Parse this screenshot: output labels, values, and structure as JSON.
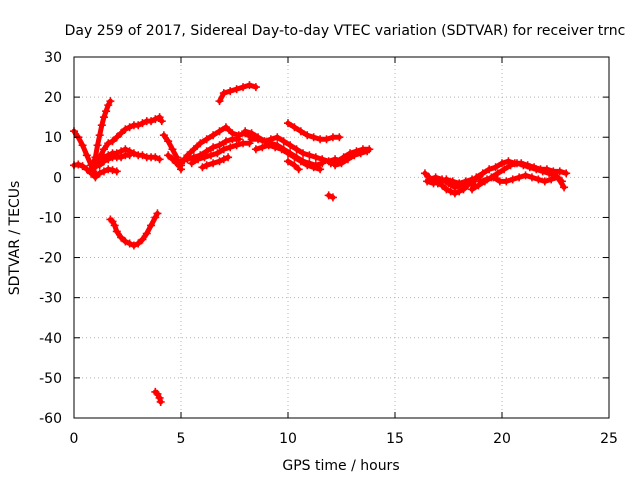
{
  "chart_data": {
    "type": "scatter",
    "title": "Day 259 of 2017, Sidereal Day-to-day VTEC variation (SDTVAR) for receiver trnc",
    "xlabel": "GPS time / hours",
    "ylabel": "SDTVAR / TECUs",
    "xlim": [
      0,
      25
    ],
    "ylim": [
      -60,
      30
    ],
    "xticks": [
      "0",
      "5",
      "10",
      "15",
      "20",
      "25"
    ],
    "yticks": [
      "30",
      "20",
      "10",
      "0",
      "-10",
      "-20",
      "-30",
      "-40",
      "-50",
      "-60"
    ],
    "grid": true,
    "marker": "+",
    "series": [
      {
        "name": "SDTVAR",
        "color": "#ff0000",
        "points": [
          [
            0.0,
            3.0
          ],
          [
            0.2,
            3.2
          ],
          [
            0.4,
            2.8
          ],
          [
            0.6,
            2.0
          ],
          [
            0.8,
            1.0
          ],
          [
            1.0,
            0.5
          ],
          [
            1.2,
            1.0
          ],
          [
            1.4,
            1.5
          ],
          [
            1.6,
            2.0
          ],
          [
            1.8,
            1.8
          ],
          [
            2.0,
            1.5
          ],
          [
            0.0,
            11.5
          ],
          [
            0.2,
            10.0
          ],
          [
            0.4,
            8.0
          ],
          [
            0.6,
            5.5
          ],
          [
            0.8,
            3.0
          ],
          [
            0.9,
            1.5
          ],
          [
            1.0,
            0.0
          ],
          [
            0.8,
            2.0
          ],
          [
            1.0,
            5.0
          ],
          [
            1.1,
            8.0
          ],
          [
            1.2,
            10.5
          ],
          [
            1.3,
            13.0
          ],
          [
            1.4,
            15.0
          ],
          [
            1.5,
            16.5
          ],
          [
            1.6,
            18.0
          ],
          [
            1.7,
            19.0
          ],
          [
            1.0,
            3.0
          ],
          [
            1.2,
            5.0
          ],
          [
            1.4,
            7.0
          ],
          [
            1.6,
            8.5
          ],
          [
            1.8,
            9.0
          ],
          [
            2.0,
            10.0
          ],
          [
            2.2,
            11.0
          ],
          [
            2.4,
            12.0
          ],
          [
            2.6,
            12.5
          ],
          [
            2.8,
            13.0
          ],
          [
            3.0,
            13.0
          ],
          [
            3.2,
            13.5
          ],
          [
            3.4,
            14.0
          ],
          [
            3.6,
            14.0
          ],
          [
            3.8,
            14.5
          ],
          [
            4.0,
            15.0
          ],
          [
            4.1,
            14.0
          ],
          [
            1.0,
            2.5
          ],
          [
            1.2,
            4.0
          ],
          [
            1.4,
            5.0
          ],
          [
            1.6,
            5.5
          ],
          [
            1.8,
            6.0
          ],
          [
            2.0,
            6.0
          ],
          [
            2.2,
            6.5
          ],
          [
            2.4,
            7.0
          ],
          [
            2.6,
            6.5
          ],
          [
            2.8,
            6.0
          ],
          [
            3.0,
            5.5
          ],
          [
            3.2,
            5.5
          ],
          [
            3.4,
            5.0
          ],
          [
            3.6,
            5.0
          ],
          [
            3.8,
            5.0
          ],
          [
            4.0,
            4.5
          ],
          [
            1.2,
            3.0
          ],
          [
            1.4,
            4.0
          ],
          [
            1.6,
            4.5
          ],
          [
            1.8,
            5.0
          ],
          [
            2.0,
            5.0
          ],
          [
            2.2,
            5.0
          ],
          [
            2.4,
            5.5
          ],
          [
            2.6,
            5.5
          ],
          [
            1.7,
            -10.5
          ],
          [
            1.8,
            -11.0
          ],
          [
            1.9,
            -12.0
          ],
          [
            2.0,
            -13.5
          ],
          [
            2.2,
            -15.0
          ],
          [
            2.4,
            -16.0
          ],
          [
            2.6,
            -16.5
          ],
          [
            2.8,
            -17.0
          ],
          [
            3.0,
            -16.5
          ],
          [
            3.2,
            -15.5
          ],
          [
            3.4,
            -14.0
          ],
          [
            3.6,
            -12.0
          ],
          [
            3.8,
            -10.0
          ],
          [
            3.9,
            -9.0
          ],
          [
            3.8,
            -53.5
          ],
          [
            3.9,
            -54.0
          ],
          [
            4.0,
            -55.0
          ],
          [
            4.05,
            -56.0
          ],
          [
            4.2,
            10.5
          ],
          [
            4.4,
            9.0
          ],
          [
            4.6,
            7.0
          ],
          [
            4.8,
            5.0
          ],
          [
            4.9,
            3.0
          ],
          [
            5.0,
            2.0
          ],
          [
            4.4,
            5.5
          ],
          [
            4.6,
            4.5
          ],
          [
            4.8,
            3.5
          ],
          [
            5.0,
            3.0
          ],
          [
            5.0,
            4.0
          ],
          [
            5.3,
            4.5
          ],
          [
            5.6,
            5.0
          ],
          [
            5.9,
            5.5
          ],
          [
            6.2,
            6.5
          ],
          [
            6.5,
            7.5
          ],
          [
            6.8,
            8.0
          ],
          [
            7.1,
            9.0
          ],
          [
            7.4,
            9.5
          ],
          [
            7.7,
            9.5
          ],
          [
            5.0,
            3.5
          ],
          [
            5.3,
            5.5
          ],
          [
            5.6,
            7.0
          ],
          [
            5.9,
            8.5
          ],
          [
            6.2,
            9.5
          ],
          [
            6.5,
            10.5
          ],
          [
            6.8,
            11.5
          ],
          [
            7.1,
            12.5
          ],
          [
            7.4,
            11.0
          ],
          [
            7.7,
            10.5
          ],
          [
            8.0,
            11.0
          ],
          [
            8.3,
            10.0
          ],
          [
            5.5,
            3.5
          ],
          [
            5.8,
            4.5
          ],
          [
            6.1,
            5.0
          ],
          [
            6.4,
            5.5
          ],
          [
            6.7,
            6.0
          ],
          [
            7.0,
            7.0
          ],
          [
            7.3,
            7.5
          ],
          [
            7.6,
            8.0
          ],
          [
            7.9,
            8.5
          ],
          [
            8.2,
            8.5
          ],
          [
            6.0,
            2.5
          ],
          [
            6.2,
            3.0
          ],
          [
            6.5,
            3.5
          ],
          [
            6.8,
            4.0
          ],
          [
            7.0,
            4.5
          ],
          [
            7.2,
            5.0
          ],
          [
            6.8,
            19.0
          ],
          [
            7.0,
            21.0
          ],
          [
            7.3,
            21.5
          ],
          [
            7.6,
            22.0
          ],
          [
            7.9,
            22.5
          ],
          [
            8.2,
            23.0
          ],
          [
            8.5,
            22.5
          ],
          [
            8.0,
            11.5
          ],
          [
            8.3,
            11.0
          ],
          [
            8.6,
            10.0
          ],
          [
            8.9,
            9.0
          ],
          [
            9.2,
            8.5
          ],
          [
            9.5,
            8.0
          ],
          [
            9.8,
            7.0
          ],
          [
            10.1,
            6.0
          ],
          [
            10.4,
            5.0
          ],
          [
            10.7,
            4.0
          ],
          [
            11.0,
            3.5
          ],
          [
            11.3,
            3.0
          ],
          [
            11.6,
            3.5
          ],
          [
            8.3,
            9.5
          ],
          [
            8.6,
            9.5
          ],
          [
            8.9,
            9.0
          ],
          [
            9.2,
            9.5
          ],
          [
            9.5,
            10.0
          ],
          [
            9.8,
            9.0
          ],
          [
            10.1,
            8.0
          ],
          [
            10.4,
            7.0
          ],
          [
            10.7,
            6.0
          ],
          [
            11.0,
            5.5
          ],
          [
            11.3,
            5.0
          ],
          [
            11.6,
            4.5
          ],
          [
            11.9,
            4.0
          ],
          [
            12.2,
            4.5
          ],
          [
            12.5,
            4.0
          ],
          [
            8.5,
            7.0
          ],
          [
            8.8,
            7.5
          ],
          [
            9.1,
            8.0
          ],
          [
            9.4,
            7.5
          ],
          [
            9.7,
            7.0
          ],
          [
            10.0,
            6.0
          ],
          [
            10.3,
            5.0
          ],
          [
            10.6,
            4.0
          ],
          [
            10.9,
            3.0
          ],
          [
            11.2,
            2.5
          ],
          [
            11.5,
            2.0
          ],
          [
            10.0,
            13.5
          ],
          [
            10.3,
            12.5
          ],
          [
            10.6,
            11.5
          ],
          [
            10.9,
            10.5
          ],
          [
            11.2,
            10.0
          ],
          [
            11.5,
            9.5
          ],
          [
            11.8,
            9.5
          ],
          [
            12.1,
            10.0
          ],
          [
            12.4,
            10.0
          ],
          [
            10.0,
            4.0
          ],
          [
            10.3,
            3.0
          ],
          [
            10.5,
            2.0
          ],
          [
            11.9,
            -4.5
          ],
          [
            12.1,
            -5.0
          ],
          [
            12.0,
            3.5
          ],
          [
            12.3,
            4.0
          ],
          [
            12.6,
            5.0
          ],
          [
            12.9,
            6.0
          ],
          [
            13.2,
            6.5
          ],
          [
            13.5,
            7.0
          ],
          [
            13.8,
            7.0
          ],
          [
            12.2,
            3.0
          ],
          [
            12.5,
            3.5
          ],
          [
            12.8,
            4.5
          ],
          [
            13.1,
            5.5
          ],
          [
            13.4,
            6.0
          ],
          [
            13.7,
            6.5
          ],
          [
            16.4,
            1.0
          ],
          [
            16.6,
            0.0
          ],
          [
            16.8,
            -1.0
          ],
          [
            17.0,
            -1.5
          ],
          [
            17.2,
            -2.0
          ],
          [
            17.4,
            -3.0
          ],
          [
            17.6,
            -3.5
          ],
          [
            17.8,
            -4.0
          ],
          [
            18.0,
            -3.5
          ],
          [
            18.2,
            -3.0
          ],
          [
            18.4,
            -2.0
          ],
          [
            16.5,
            -1.0
          ],
          [
            16.8,
            -1.5
          ],
          [
            17.1,
            -1.0
          ],
          [
            17.4,
            -0.5
          ],
          [
            17.7,
            -1.0
          ],
          [
            18.0,
            -1.5
          ],
          [
            18.3,
            -1.0
          ],
          [
            18.6,
            -0.5
          ],
          [
            18.9,
            0.0
          ],
          [
            16.6,
            -0.5
          ],
          [
            16.9,
            0.0
          ],
          [
            17.2,
            -0.5
          ],
          [
            17.5,
            -1.5
          ],
          [
            17.8,
            -2.5
          ],
          [
            18.1,
            -2.0
          ],
          [
            18.4,
            -1.5
          ],
          [
            18.7,
            -1.0
          ],
          [
            18.6,
            -3.0
          ],
          [
            18.9,
            -2.0
          ],
          [
            19.2,
            -1.0
          ],
          [
            19.5,
            0.0
          ],
          [
            19.8,
            1.0
          ],
          [
            20.1,
            2.0
          ],
          [
            20.4,
            3.0
          ],
          [
            20.7,
            3.5
          ],
          [
            21.0,
            3.0
          ],
          [
            21.3,
            2.5
          ],
          [
            21.6,
            2.0
          ],
          [
            21.9,
            1.5
          ],
          [
            22.2,
            1.0
          ],
          [
            22.5,
            0.5
          ],
          [
            22.8,
            -1.0
          ],
          [
            18.8,
            0.0
          ],
          [
            19.1,
            1.0
          ],
          [
            19.4,
            2.0
          ],
          [
            19.7,
            2.5
          ],
          [
            20.0,
            3.5
          ],
          [
            20.3,
            4.0
          ],
          [
            20.6,
            3.5
          ],
          [
            20.9,
            3.5
          ],
          [
            21.2,
            3.0
          ],
          [
            21.5,
            2.5
          ],
          [
            21.8,
            2.0
          ],
          [
            22.1,
            2.0
          ],
          [
            22.4,
            1.5
          ],
          [
            22.7,
            1.5
          ],
          [
            23.0,
            1.0
          ],
          [
            19.0,
            -1.0
          ],
          [
            19.3,
            -0.5
          ],
          [
            19.6,
            0.0
          ],
          [
            19.9,
            -1.0
          ],
          [
            20.2,
            -1.0
          ],
          [
            20.5,
            -0.5
          ],
          [
            20.8,
            0.0
          ],
          [
            21.1,
            0.5
          ],
          [
            21.4,
            0.0
          ],
          [
            21.7,
            -0.5
          ],
          [
            22.0,
            -1.0
          ],
          [
            22.3,
            -0.5
          ],
          [
            22.6,
            0.0
          ],
          [
            22.9,
            -2.5
          ]
        ]
      }
    ]
  }
}
